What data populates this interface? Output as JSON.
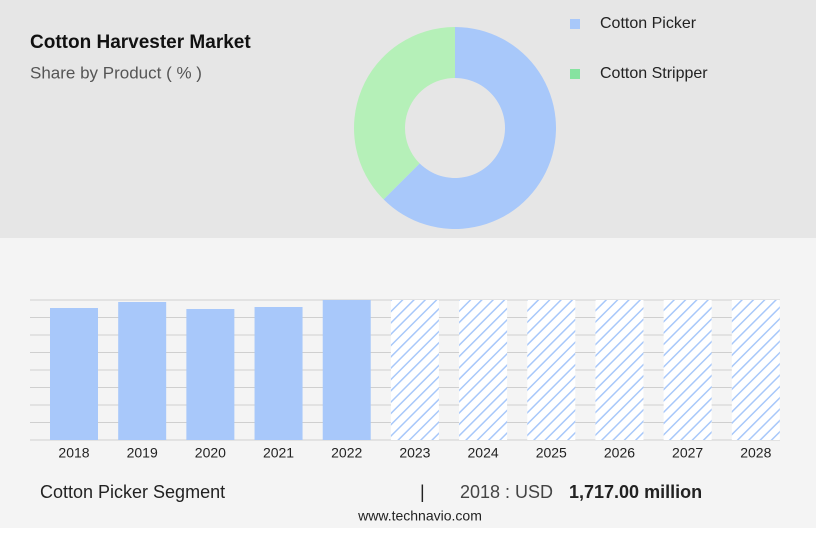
{
  "chart_data": [
    {
      "type": "pie",
      "title": "Cotton Harvester Market",
      "subtitle": "Share by Product ( % )",
      "donut": true,
      "categories": [
        "Cotton Picker",
        "Cotton Stripper"
      ],
      "values": [
        62.5,
        37.5
      ],
      "colors": [
        "#a8c8fa",
        "#b5f0b8"
      ],
      "legend_colors": [
        "#a8c8fa",
        "#86e3a0"
      ],
      "legend": "top-right"
    },
    {
      "type": "bar",
      "categories": [
        "2018",
        "2019",
        "2020",
        "2021",
        "2022",
        "2023",
        "2024",
        "2025",
        "2026",
        "2027",
        "2028"
      ],
      "values": [
        1717,
        1795,
        1704,
        1730,
        1821,
        null,
        null,
        null,
        null,
        null,
        null
      ],
      "color": "#a8c8fa",
      "ylim": [
        0,
        1821
      ],
      "grid": true
    }
  ],
  "footer": {
    "segment": "Cotton Picker Segment",
    "separator": "|",
    "year_label": "2018 : USD",
    "value": "1,717.00 million",
    "source": "www.technavio.com"
  }
}
